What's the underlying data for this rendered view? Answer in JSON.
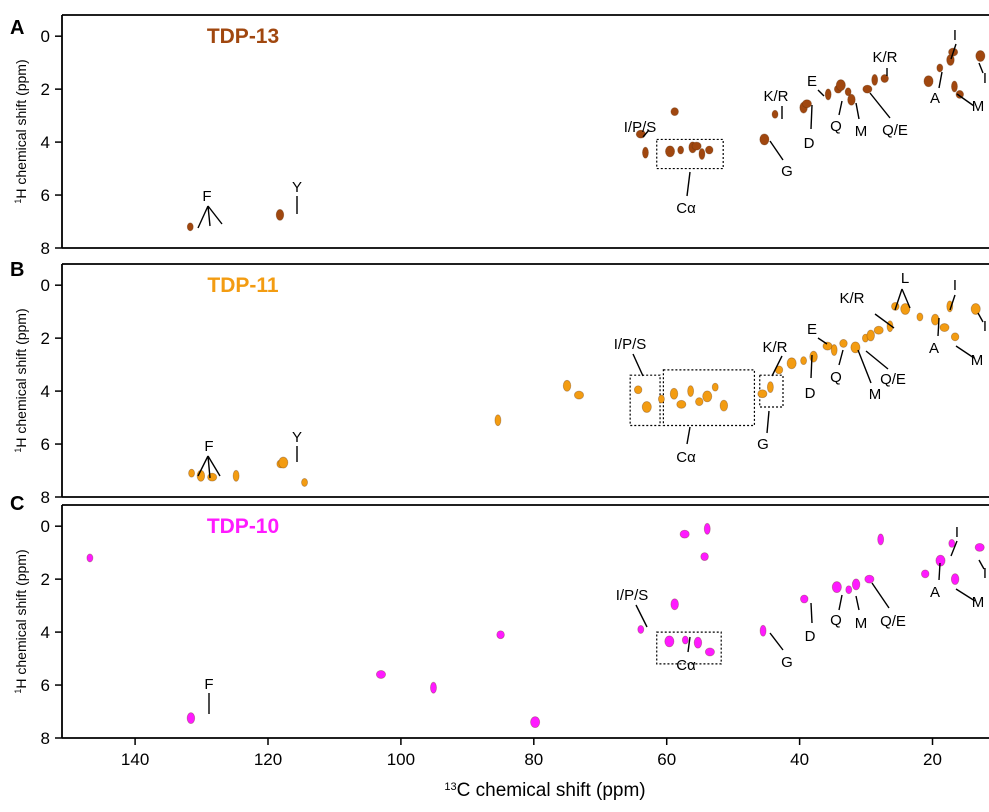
{
  "figure": {
    "xlabel_prefix": "13",
    "xlabel_text": "C chemical shift (ppm)",
    "ylabel_prefix": "1",
    "ylabel_text": "H chemical shift (ppm)"
  },
  "chart_data": [
    {
      "type": "scatter",
      "panel": "A",
      "title": "TDP-13",
      "color": "#a0470f",
      "xlim": [
        151,
        11.5
      ],
      "ylim": [
        8,
        -0.8
      ],
      "xlabel": "13C chemical shift (ppm)",
      "ylabel": "1H chemical shift (ppm)",
      "peaks": [
        [
          131.7,
          7.2
        ],
        [
          118.2,
          6.75
        ],
        [
          63.9,
          3.7
        ],
        [
          63.2,
          4.4
        ],
        [
          58.8,
          2.85
        ],
        [
          59.5,
          4.35
        ],
        [
          57.9,
          4.3
        ],
        [
          56.1,
          4.2
        ],
        [
          55.5,
          4.15
        ],
        [
          54.7,
          4.45
        ],
        [
          53.6,
          4.3
        ],
        [
          45.3,
          3.9
        ],
        [
          43.7,
          2.95
        ],
        [
          39.4,
          2.7
        ],
        [
          38.9,
          2.55
        ],
        [
          35.7,
          2.2
        ],
        [
          34.2,
          2.0
        ],
        [
          33.8,
          1.85
        ],
        [
          32.7,
          2.1
        ],
        [
          32.2,
          2.4
        ],
        [
          29.8,
          2.0
        ],
        [
          28.7,
          1.65
        ],
        [
          27.2,
          1.6
        ],
        [
          20.6,
          1.7
        ],
        [
          18.9,
          1.2
        ],
        [
          17.3,
          0.9
        ],
        [
          16.9,
          0.6
        ],
        [
          16.7,
          1.9
        ],
        [
          15.9,
          2.2
        ],
        [
          12.8,
          0.75
        ]
      ],
      "peak_labels": [
        "F",
        "Y",
        "I/P/S",
        "Cα",
        "K/R",
        "G",
        "E",
        "D",
        "Q",
        "M",
        "Q/E",
        "K/R",
        "I",
        "I",
        "A",
        "M"
      ]
    },
    {
      "type": "scatter",
      "panel": "B",
      "title": "TDP-11",
      "color": "#f39c12",
      "xlim": [
        151,
        11.5
      ],
      "ylim": [
        8,
        -0.8
      ],
      "xlabel": "13C chemical shift (ppm)",
      "ylabel": "1H chemical shift (ppm)",
      "peaks": [
        [
          131.5,
          7.1
        ],
        [
          130.1,
          7.2
        ],
        [
          128.4,
          7.25
        ],
        [
          124.8,
          7.2
        ],
        [
          118.1,
          6.75
        ],
        [
          117.7,
          6.7
        ],
        [
          114.5,
          7.45
        ],
        [
          75.0,
          3.8
        ],
        [
          73.2,
          4.15
        ],
        [
          85.4,
          5.1
        ],
        [
          64.3,
          3.95
        ],
        [
          63.0,
          4.6
        ],
        [
          60.8,
          4.3
        ],
        [
          58.9,
          4.1
        ],
        [
          57.8,
          4.5
        ],
        [
          56.4,
          4.0
        ],
        [
          55.1,
          4.4
        ],
        [
          53.9,
          4.2
        ],
        [
          52.7,
          3.85
        ],
        [
          51.4,
          4.55
        ],
        [
          45.6,
          4.1
        ],
        [
          44.4,
          3.85
        ],
        [
          43.1,
          3.2
        ],
        [
          41.2,
          2.95
        ],
        [
          39.4,
          2.85
        ],
        [
          37.9,
          2.7
        ],
        [
          35.8,
          2.3
        ],
        [
          34.8,
          2.45
        ],
        [
          33.4,
          2.2
        ],
        [
          31.6,
          2.35
        ],
        [
          30.1,
          2.0
        ],
        [
          29.3,
          1.9
        ],
        [
          28.1,
          1.7
        ],
        [
          26.4,
          1.55
        ],
        [
          25.6,
          0.8
        ],
        [
          24.1,
          0.9
        ],
        [
          21.9,
          1.2
        ],
        [
          19.6,
          1.3
        ],
        [
          18.2,
          1.6
        ],
        [
          17.4,
          0.8
        ],
        [
          16.6,
          1.95
        ],
        [
          13.5,
          0.9
        ]
      ],
      "peak_labels": [
        "F",
        "Y",
        "I/P/S",
        "Cα",
        "G",
        "K/R",
        "E",
        "D",
        "Q",
        "M",
        "Q/E",
        "K/R",
        "L",
        "I",
        "I",
        "A",
        "M"
      ]
    },
    {
      "type": "scatter",
      "panel": "C",
      "title": "TDP-10",
      "color": "#ff1aff",
      "xlim": [
        151,
        11.5
      ],
      "ylim": [
        8,
        -0.8
      ],
      "xlabel": "13C chemical shift (ppm)",
      "ylabel": "1H chemical shift (ppm)",
      "peaks": [
        [
          146.8,
          1.2
        ],
        [
          131.6,
          7.25
        ],
        [
          103.0,
          5.6
        ],
        [
          95.1,
          6.1
        ],
        [
          85.0,
          4.1
        ],
        [
          79.8,
          7.4
        ],
        [
          63.9,
          3.9
        ],
        [
          58.8,
          2.95
        ],
        [
          57.3,
          0.3
        ],
        [
          53.9,
          0.1
        ],
        [
          54.3,
          1.15
        ],
        [
          59.6,
          4.35
        ],
        [
          57.2,
          4.3
        ],
        [
          55.3,
          4.4
        ],
        [
          53.5,
          4.75
        ],
        [
          45.5,
          3.95
        ],
        [
          39.3,
          2.75
        ],
        [
          34.4,
          2.3
        ],
        [
          32.6,
          2.4
        ],
        [
          31.5,
          2.2
        ],
        [
          29.5,
          2.0
        ],
        [
          27.8,
          0.5
        ],
        [
          21.1,
          1.8
        ],
        [
          18.8,
          1.3
        ],
        [
          17.1,
          0.65
        ],
        [
          16.6,
          2.0
        ],
        [
          12.9,
          0.8
        ]
      ],
      "peak_labels": [
        "F",
        "I/P/S",
        "Cα",
        "G",
        "D",
        "Q",
        "M",
        "Q/E",
        "I",
        "I",
        "A",
        "M"
      ]
    }
  ],
  "x_ticks": [
    140,
    120,
    100,
    80,
    60,
    40,
    20
  ],
  "y_ticks": [
    0,
    2,
    4,
    6,
    8
  ]
}
